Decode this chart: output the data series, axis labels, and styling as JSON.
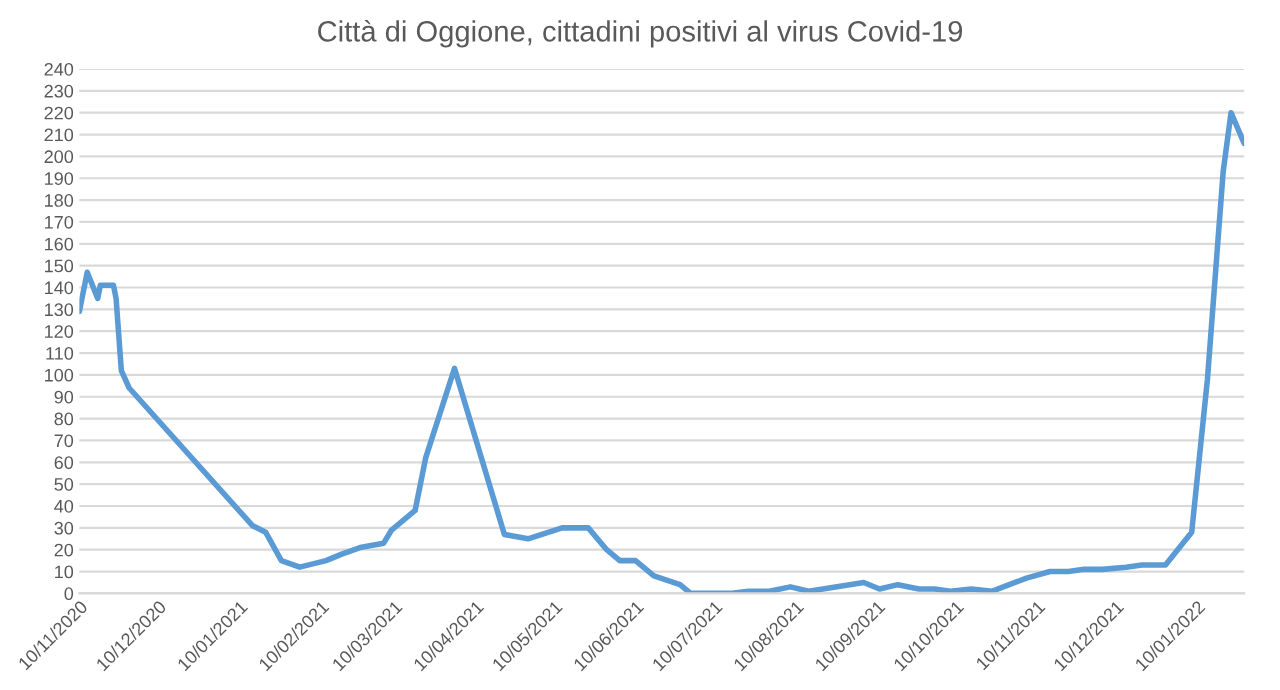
{
  "chart_data": {
    "type": "line",
    "title": "Città di Oggione, cittadini positivi al virus Covid-19",
    "x": [
      "2020-11-10",
      "2020-11-13",
      "2020-11-17",
      "2020-11-18",
      "2020-11-23",
      "2020-11-24",
      "2020-11-26",
      "2020-11-29",
      "2021-01-15",
      "2021-01-20",
      "2021-01-26",
      "2021-02-02",
      "2021-02-12",
      "2021-02-18",
      "2021-02-25",
      "2021-03-06",
      "2021-03-09",
      "2021-03-18",
      "2021-03-22",
      "2021-04-02",
      "2021-04-21",
      "2021-04-30",
      "2021-05-13",
      "2021-05-23",
      "2021-05-30",
      "2021-06-04",
      "2021-06-10",
      "2021-06-17",
      "2021-06-27",
      "2021-07-01",
      "2021-07-16",
      "2021-07-23",
      "2021-07-31",
      "2021-08-08",
      "2021-08-15",
      "2021-09-05",
      "2021-09-11",
      "2021-09-18",
      "2021-09-26",
      "2021-10-02",
      "2021-10-08",
      "2021-10-16",
      "2021-10-24",
      "2021-11-06",
      "2021-11-15",
      "2021-11-22",
      "2021-11-28",
      "2021-12-05",
      "2021-12-14",
      "2021-12-20",
      "2021-12-29",
      "2022-01-08",
      "2022-01-14",
      "2022-01-20",
      "2022-01-23",
      "2022-01-28"
    ],
    "series": [
      {
        "color": "#5b9bd5",
        "values": [
          129,
          147,
          135,
          141,
          141,
          135,
          102,
          94,
          31,
          28,
          15,
          12,
          15,
          18,
          21,
          23,
          29,
          38,
          62,
          103,
          27,
          25,
          30,
          30,
          20,
          15,
          15,
          8,
          4,
          0,
          0,
          1,
          1,
          3,
          1,
          5,
          2,
          4,
          2,
          2,
          1,
          2,
          1,
          7,
          10,
          10,
          11,
          11,
          12,
          13,
          13,
          28,
          98,
          193,
          220,
          206
        ]
      }
    ],
    "xlim": [
      "2020-11-10",
      "2022-01-28"
    ],
    "xticks": [
      {
        "value": "2020-11-10",
        "label": "10/11/2020"
      },
      {
        "value": "2020-12-10",
        "label": "10/12/2020"
      },
      {
        "value": "2021-01-10",
        "label": "10/01/2021"
      },
      {
        "value": "2021-02-10",
        "label": "10/02/2021"
      },
      {
        "value": "2021-03-10",
        "label": "10/03/2021"
      },
      {
        "value": "2021-04-10",
        "label": "10/04/2021"
      },
      {
        "value": "2021-05-10",
        "label": "10/05/2021"
      },
      {
        "value": "2021-06-10",
        "label": "10/06/2021"
      },
      {
        "value": "2021-07-10",
        "label": "10/07/2021"
      },
      {
        "value": "2021-08-10",
        "label": "10/08/2021"
      },
      {
        "value": "2021-09-10",
        "label": "10/09/2021"
      },
      {
        "value": "2021-10-10",
        "label": "10/10/2021"
      },
      {
        "value": "2021-11-10",
        "label": "10/11/2021"
      },
      {
        "value": "2021-12-10",
        "label": "10/12/2021"
      },
      {
        "value": "2022-01-10",
        "label": "10/01/2022"
      }
    ],
    "ylim": [
      0,
      240
    ],
    "yticks": [
      0,
      10,
      20,
      30,
      40,
      50,
      60,
      70,
      80,
      90,
      100,
      110,
      120,
      130,
      140,
      150,
      160,
      170,
      180,
      190,
      200,
      210,
      220,
      230,
      240
    ],
    "grid": "y",
    "marker": "none",
    "line_style": "solid"
  }
}
